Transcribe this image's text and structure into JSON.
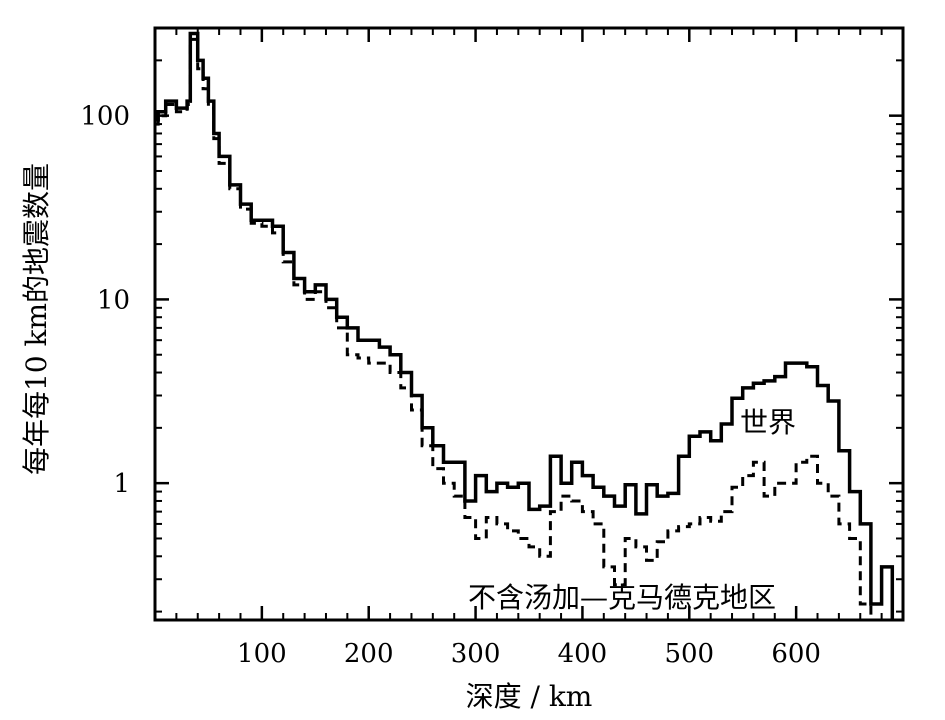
{
  "chart_data": {
    "type": "line",
    "xlabel": "深度 / km",
    "ylabel": "每年每10 km的地震数量",
    "x_ticks": [
      100,
      200,
      300,
      400,
      500,
      600
    ],
    "y_ticks": [
      1,
      10,
      100
    ],
    "y_tick_labels": [
      "1",
      "10",
      "100"
    ],
    "xlim": [
      0,
      700
    ],
    "ylim": [
      0.18,
      300
    ],
    "yscale": "log",
    "grid": false,
    "annotations": [
      "世界",
      "不含汤加—克马德克地区"
    ],
    "series": [
      {
        "label": "世界",
        "style": "solid",
        "color": "#000000",
        "x": [
          0,
          3,
          10,
          20,
          30,
          33,
          40,
          45,
          50,
          55,
          60,
          70,
          80,
          90,
          100,
          110,
          120,
          130,
          140,
          150,
          160,
          170,
          180,
          190,
          200,
          210,
          220,
          230,
          240,
          250,
          260,
          270,
          280,
          290,
          300,
          310,
          320,
          330,
          340,
          350,
          360,
          370,
          380,
          390,
          400,
          410,
          420,
          430,
          440,
          450,
          460,
          470,
          480,
          490,
          500,
          510,
          520,
          530,
          540,
          550,
          560,
          570,
          580,
          590,
          600,
          610,
          620,
          630,
          640,
          650,
          660,
          670,
          680
        ],
        "y": [
          95,
          105,
          120,
          110,
          120,
          280,
          200,
          160,
          120,
          80,
          60,
          42,
          33,
          27,
          27,
          25,
          18,
          13,
          11,
          12,
          10,
          8,
          7,
          6,
          6,
          5.5,
          5,
          4,
          3,
          2,
          1.6,
          1.3,
          1.3,
          0.8,
          1.1,
          0.9,
          1.0,
          0.95,
          1.0,
          0.72,
          0.75,
          1.4,
          1.0,
          1.3,
          1.1,
          0.95,
          0.85,
          0.75,
          0.98,
          0.68,
          0.98,
          0.85,
          0.88,
          1.4,
          1.8,
          1.9,
          1.7,
          2.1,
          2.9,
          3.3,
          3.5,
          3.6,
          3.8,
          4.5,
          4.5,
          4.3,
          3.4,
          2.8,
          1.5,
          0.9,
          0.6,
          0.22,
          0.35
        ]
      },
      {
        "label": "不含汤加—克马德克地区",
        "style": "dashed",
        "color": "#000000",
        "x": [
          0,
          3,
          10,
          20,
          30,
          33,
          40,
          45,
          50,
          55,
          60,
          70,
          80,
          90,
          100,
          110,
          120,
          130,
          140,
          150,
          160,
          170,
          180,
          190,
          200,
          210,
          220,
          230,
          240,
          250,
          260,
          270,
          280,
          290,
          300,
          310,
          320,
          330,
          340,
          350,
          360,
          370,
          380,
          390,
          400,
          410,
          420,
          430,
          440,
          450,
          460,
          470,
          480,
          490,
          500,
          510,
          520,
          530,
          540,
          550,
          560,
          570,
          580,
          590,
          600,
          610,
          620,
          630,
          640,
          650,
          660,
          670,
          680
        ],
        "y": [
          90,
          100,
          115,
          105,
          115,
          260,
          180,
          140,
          110,
          75,
          55,
          40,
          31,
          26,
          25,
          23,
          16,
          12,
          10,
          11,
          9,
          7,
          5,
          4.8,
          4.5,
          4.5,
          4.0,
          3.3,
          2.5,
          1.6,
          1.2,
          1.0,
          0.85,
          0.65,
          0.5,
          0.65,
          0.6,
          0.55,
          0.5,
          0.45,
          0.4,
          0.7,
          0.85,
          0.8,
          0.7,
          0.6,
          0.35,
          0.28,
          0.5,
          0.45,
          0.38,
          0.48,
          0.55,
          0.58,
          0.6,
          0.65,
          0.62,
          0.7,
          0.95,
          1.1,
          1.3,
          0.85,
          1.0,
          1.0,
          1.3,
          1.4,
          1.0,
          0.85,
          0.6,
          0.5,
          0.22,
          null,
          null
        ]
      }
    ]
  }
}
